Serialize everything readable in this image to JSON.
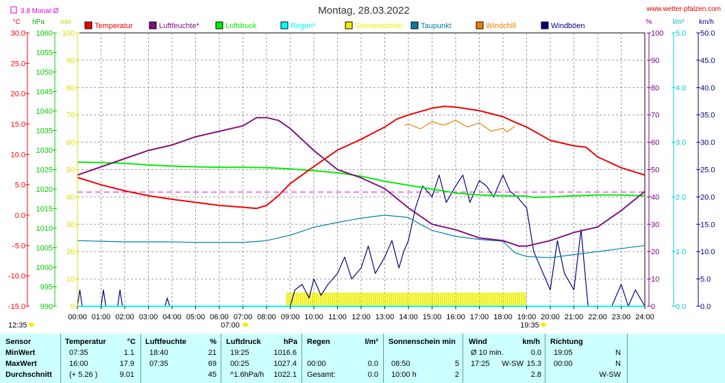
{
  "title": "Montag, 28.03.2022",
  "site": "www.wetter-pfalzen.com",
  "monat_label": "3.8 Monat-Ø",
  "units_left": [
    "°C",
    "hPa",
    "min"
  ],
  "units_right": [
    "%",
    "l/m²",
    "km/h"
  ],
  "sunrise_label": "07:00",
  "sunset_label": "19:35",
  "left_corner_label": "12:35",
  "colors": {
    "temperatur": "#ee0000",
    "luftfeuchte": "#7f0f7f",
    "luftdruck": "#00ee00",
    "regen": "#00ffff",
    "sonnenschein": "#eeee00",
    "taupunkt": "#007fa8",
    "windchill": "#ee7f00",
    "windboeen": "#00007f",
    "temp_axis": "#ff0000",
    "press_axis": "#00cc00",
    "sun_axis": "#dddd00",
    "hum_axis": "#800080",
    "rain_axis": "#00cccc",
    "wind_axis": "#000080",
    "monat_line": "#dd00dd"
  },
  "chart_data": {
    "type": "line",
    "title": "Montag, 28.03.2022",
    "x_ticks": [
      "00:00",
      "01:00",
      "02:00",
      "03:00",
      "04:00",
      "05:00",
      "06:00",
      "07:00",
      "08:00",
      "09:00",
      "10:00",
      "11:00",
      "12:00",
      "13:00",
      "14:00",
      "15:00",
      "16:00",
      "17:00",
      "18:00",
      "19:00",
      "20:00",
      "21:00",
      "22:00",
      "23:00",
      "24:00"
    ],
    "x_range_hours": [
      0,
      24
    ],
    "axes": {
      "temperature_c": {
        "range": [
          -15,
          30
        ],
        "ticks": [
          "30.0",
          "25.0",
          "20.0",
          "15.0",
          "10.0",
          "5.0",
          "0.0",
          "-5.0",
          "-10.0",
          "-15.0"
        ]
      },
      "pressure_hpa": {
        "range": [
          990,
          1060
        ],
        "ticks": [
          "1060",
          "1055",
          "1050",
          "1045",
          "1040",
          "1035",
          "1030",
          "1025",
          "1020",
          "1015",
          "1010",
          "1005",
          "1000",
          "995",
          "990"
        ]
      },
      "sunshine_min": {
        "range": [
          0,
          100
        ],
        "ticks": [
          "100",
          "90",
          "80",
          "70",
          "60",
          "50",
          "40",
          "30",
          "20",
          "10",
          "0"
        ]
      },
      "humidity_pct": {
        "range": [
          0,
          100
        ],
        "ticks": [
          "100",
          "90",
          "80",
          "70",
          "60",
          "50",
          "40",
          "30",
          "20",
          "10",
          "0"
        ]
      },
      "rain_lm2": {
        "range": [
          0,
          5
        ],
        "ticks": [
          "5.0",
          "4.0",
          "3.0",
          "2.0",
          "1.0",
          "0.0"
        ]
      },
      "wind_kmh": {
        "range": [
          0,
          50
        ],
        "ticks": [
          "50.0",
          "45.0",
          "40.0",
          "35.0",
          "30.0",
          "25.0",
          "20.0",
          "15.0",
          "10.0",
          "5.0",
          "0.0"
        ]
      }
    },
    "monat_avg_temp": 3.8,
    "legend": [
      "Temperatur",
      "Luftfeuchte*",
      "Luftdruck",
      "Regen*",
      "Sonnenschein",
      "Taupunkt",
      "Windchill",
      "Windböen"
    ],
    "series": [
      {
        "name": "Temperatur",
        "axis": "temperature_c",
        "x": [
          0,
          1,
          2,
          3,
          4,
          5,
          6,
          7,
          7.58,
          8,
          8.5,
          9,
          10,
          11,
          12,
          13,
          13.5,
          14,
          15,
          15.5,
          16,
          17,
          18,
          18.5,
          19,
          20,
          21,
          21.5,
          22,
          23,
          24
        ],
        "y": [
          6.2,
          5.0,
          4.0,
          3.2,
          2.6,
          2.1,
          1.6,
          1.3,
          1.1,
          1.6,
          3.2,
          5.2,
          8.0,
          10.7,
          12.5,
          14.5,
          15.8,
          16.5,
          17.6,
          17.9,
          17.8,
          17.2,
          16.2,
          15.3,
          14.5,
          12.3,
          11.4,
          11.2,
          9.6,
          7.8,
          6.6
        ]
      },
      {
        "name": "Luftfeuchte*",
        "axis": "humidity_pct",
        "x": [
          0,
          1,
          2,
          3,
          4,
          5,
          6,
          7,
          7.58,
          8,
          8.5,
          9,
          10,
          11,
          12,
          13,
          14,
          15,
          16,
          17,
          18,
          18.67,
          19,
          20,
          21,
          22,
          23,
          24
        ],
        "y": [
          48,
          51,
          54,
          57,
          59,
          62,
          64,
          66,
          69,
          69,
          68,
          65,
          57,
          50,
          47,
          43,
          36,
          30,
          28,
          25,
          24,
          22,
          22,
          24,
          27,
          29,
          35,
          42
        ]
      },
      {
        "name": "Luftdruck",
        "axis": "pressure_hpa",
        "x": [
          0,
          1,
          2,
          3,
          4,
          5,
          6,
          7,
          8,
          9,
          10,
          11,
          12,
          13,
          14,
          15,
          16,
          17,
          18,
          19,
          19.32,
          20,
          21,
          22,
          23,
          24
        ],
        "y": [
          1026.9,
          1026.8,
          1026.6,
          1026.2,
          1025.9,
          1025.7,
          1025.6,
          1025.6,
          1025.5,
          1025.2,
          1024.7,
          1024.2,
          1023.3,
          1022.0,
          1021.0,
          1020.0,
          1019.0,
          1018.5,
          1018.3,
          1018.2,
          1017.9,
          1018.0,
          1018.3,
          1018.5,
          1018.5,
          1018.3
        ]
      },
      {
        "name": "Taupunkt",
        "axis": "temperature_c",
        "x": [
          0,
          1,
          2,
          3,
          4,
          5,
          6,
          7,
          8,
          9,
          10,
          11,
          12,
          13,
          14,
          14.5,
          15,
          16,
          17,
          18,
          18.5,
          19,
          20,
          21,
          22,
          23,
          24
        ],
        "y": [
          -4.2,
          -4.3,
          -4.4,
          -4.4,
          -4.4,
          -4.5,
          -4.5,
          -4.5,
          -4.2,
          -3.3,
          -2.0,
          -1.2,
          -0.5,
          0,
          -0.4,
          -1.5,
          -2.5,
          -3.5,
          -4.0,
          -4.3,
          -6.2,
          -6.8,
          -7.0,
          -6.5,
          -6.0,
          -5.5,
          -5.0
        ]
      },
      {
        "name": "Windchill",
        "axis": "temperature_c",
        "x": [
          13.83,
          14,
          14.5,
          15,
          15.5,
          16,
          16.5,
          17,
          17.5,
          18,
          18.17,
          18.5
        ],
        "y": [
          14.8,
          15.0,
          14.2,
          15.4,
          14.8,
          15.6,
          14.5,
          15.2,
          13.8,
          14.3,
          13.7,
          14.6
        ]
      },
      {
        "name": "Windböen",
        "axis": "wind_kmh",
        "x": [
          0,
          0.1,
          0.2,
          0.3,
          1,
          1.1,
          1.2,
          1.3,
          1.7,
          1.8,
          1.9,
          2,
          3.7,
          3.8,
          3.9,
          9,
          9.2,
          9.5,
          9.8,
          10,
          10.3,
          10.6,
          11,
          11.3,
          11.6,
          12,
          12.3,
          12.6,
          13,
          13.3,
          13.6,
          13.8,
          14,
          14.3,
          14.6,
          15,
          15.3,
          15.6,
          16,
          16.3,
          16.6,
          17,
          17.3,
          17.6,
          18,
          18.3,
          18.6,
          19,
          19.3,
          19.6,
          20,
          20.3,
          20.6,
          21,
          21.3,
          21.6,
          22,
          22.3,
          22.6,
          23,
          23.3,
          23.6,
          24
        ],
        "y": [
          0,
          3,
          0,
          0,
          0,
          3,
          0,
          0,
          0,
          3,
          0,
          0,
          0,
          1.5,
          0,
          0,
          3,
          4,
          1.5,
          5,
          2,
          4,
          6,
          9,
          5,
          7,
          11,
          6,
          9,
          12,
          7,
          10,
          12,
          18,
          22,
          20,
          24,
          19,
          22,
          24,
          19,
          23,
          22,
          20,
          24,
          21,
          20,
          18,
          10,
          7,
          3,
          12,
          6,
          3,
          14,
          0,
          0,
          0,
          0,
          4,
          0,
          3,
          0
        ]
      },
      {
        "name": "Sonnenschein",
        "axis": "sunshine_min",
        "x": [
          8.83,
          18.92
        ],
        "y": [
          5,
          5
        ]
      }
    ]
  },
  "table": {
    "headers": {
      "sensor": "Sensor",
      "temperatur": "Temperatur",
      "temperatur_unit": "°C",
      "luftfeuchte": "Luftfeuchte",
      "luftfeuchte_unit": "%",
      "luftdruck": "Luftdruck",
      "luftdruck_unit": "hPa",
      "regen": "Regen",
      "regen_unit": "l/m²",
      "sonnenschein": "Sonnenschein min",
      "wind": "Wind",
      "wind_unit": "km/h",
      "richtung": "Richtung"
    },
    "rows": {
      "minwert": {
        "label": "MinWert",
        "temp_time": "07:35",
        "temp_val": "1.1",
        "hum_time": "18:40",
        "hum_val": "21",
        "press_time": "19:25",
        "press_val": "1016.6",
        "regen_time": "",
        "regen_val": "",
        "sun_time": "",
        "sun_val": "",
        "wind_time": "Ø 10 min.",
        "wind_dir": "",
        "wind_val": "0.0",
        "richt_time": "19:05",
        "richt_val": "N"
      },
      "maxwert": {
        "label": "MaxWert",
        "temp_time": "16:00",
        "temp_val": "17.9",
        "hum_time": "07:35",
        "hum_val": "69",
        "press_time": "00:25",
        "press_val": "1027.4",
        "regen_time": "00:00",
        "regen_val": "0.0",
        "sun_time": "08:50",
        "sun_val": "5",
        "wind_time": "17:25",
        "wind_dir": "W-SW",
        "wind_val": "15.3",
        "richt_time": "00:00",
        "richt_val": "N"
      },
      "durchschnitt": {
        "label": "Durchschnitt",
        "temp_time": "(+ 5.26 )",
        "temp_val": "9.01",
        "hum_time": "",
        "hum_val": "45",
        "press_time": "^1.6hPa/h",
        "press_val": "1022.1",
        "regen_time": "Gesamt:",
        "regen_val": "0.0",
        "sun_time": "10:00 h",
        "sun_val": "2",
        "wind_time": "",
        "wind_dir": "",
        "wind_val": "2.8",
        "richt_time": "",
        "richt_val": "W-SW"
      }
    }
  }
}
